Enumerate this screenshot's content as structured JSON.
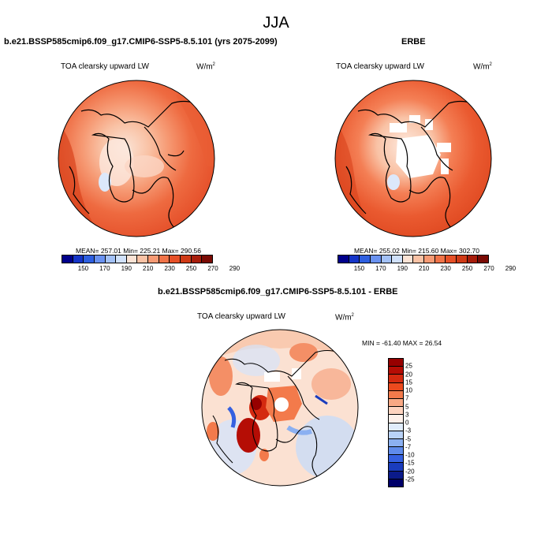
{
  "page": {
    "title": "JJA"
  },
  "panels": {
    "model": {
      "title": "b.e21.BSSP585cmip6.f09_g17.CMIP6-SSP5-8.5.101 (yrs 2075-2099)",
      "variable": "TOA clearsky upward LW",
      "units": "W/m",
      "units_exp": "2",
      "stats": "MEAN= 257.01  Min= 225.21  Max= 290.56",
      "colorbar_ticks": [
        "150",
        "170",
        "190",
        "210",
        "230",
        "250",
        "270",
        "290"
      ]
    },
    "obs": {
      "title": "ERBE",
      "variable": "TOA clearsky upward LW",
      "units": "W/m",
      "units_exp": "2",
      "stats": "MEAN= 255.02  Min= 215.60  Max= 302.70",
      "colorbar_ticks": [
        "150",
        "170",
        "190",
        "210",
        "230",
        "250",
        "270",
        "290"
      ]
    },
    "diff": {
      "title": "b.e21.BSSP585cmip6.f09_g17.CMIP6-SSP5-8.5.101 - ERBE",
      "variable": "TOA clearsky upward LW",
      "units": "W/m",
      "units_exp": "2",
      "stats": "MIN = -61.40 MAX =  26.54",
      "colorbar_ticks": [
        "25",
        "20",
        "15",
        "10",
        "7",
        "5",
        "3",
        "0",
        "-3",
        "-5",
        "-7",
        "-10",
        "-15",
        "-20",
        "-25"
      ]
    }
  },
  "colors": {
    "abs_scale": [
      "#00008b",
      "#1535c8",
      "#2e5fe0",
      "#6a92f0",
      "#a3c1f6",
      "#d0e1fa",
      "#fbe3d5",
      "#f9c2a5",
      "#f69a74",
      "#f07348",
      "#e65027",
      "#cf3a16",
      "#a71d0a",
      "#7a0a04"
    ],
    "diff_scale": [
      "#970000",
      "#b50d05",
      "#d42a10",
      "#ec4a1e",
      "#f37a4b",
      "#f8a884",
      "#fdd3bf",
      "#fdf0ea",
      "#e0ecfb",
      "#b9d2f7",
      "#8bb0f1",
      "#5f8beb",
      "#3560e0",
      "#1a3cbd",
      "#0b1a8a",
      "#00006a"
    ],
    "model_base": "#e8542e",
    "obs_base": "#e8542e"
  }
}
